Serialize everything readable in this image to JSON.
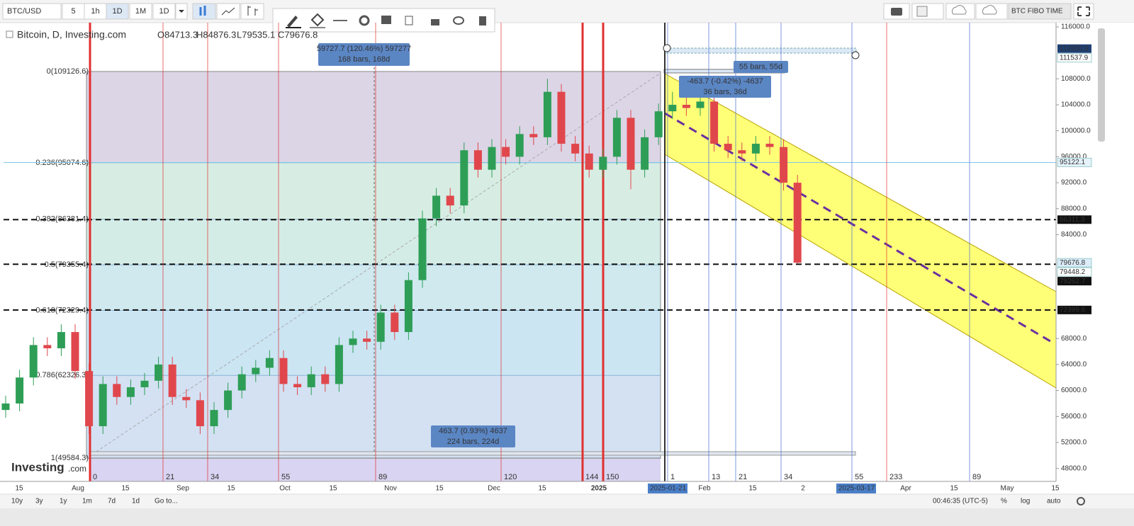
{
  "toolbar": {
    "symbol": "BTC/USD",
    "intervals": [
      "5",
      "1h",
      "1D",
      "1M",
      "1D"
    ],
    "template": "BTC FIBO TIME"
  },
  "legend": {
    "title": "Bitcoin, D, Investing.com",
    "open": "O84713.3",
    "high": "H84876.3",
    "low": "L79535.1",
    "close": "C79676.8"
  },
  "logo": {
    "brand": "Investing",
    "suffix": ".com"
  },
  "chart_data": {
    "type": "candlestick",
    "ylim": [
      46000,
      116650
    ],
    "yticks": [
      {
        "value": 116000,
        "label": "116000.0"
      },
      {
        "value": 108000,
        "label": "108000.0"
      },
      {
        "value": 104000,
        "label": "104000.0"
      },
      {
        "value": 100000,
        "label": "100000.0"
      },
      {
        "value": 96000,
        "label": "96000.0"
      },
      {
        "value": 92000,
        "label": "92000.0"
      },
      {
        "value": 88000,
        "label": "88000.0"
      },
      {
        "value": 84000,
        "label": "84000.0"
      },
      {
        "value": 68000,
        "label": "68000.0"
      },
      {
        "value": 64000,
        "label": "64000.0"
      },
      {
        "value": 60000,
        "label": "60000.0"
      },
      {
        "value": 56000,
        "label": "56000.0"
      },
      {
        "value": 52000,
        "label": "52000.0"
      },
      {
        "value": 48000,
        "label": "48000.0"
      }
    ],
    "up_color": "#2e9e56",
    "down_color": "#e0474c",
    "candles": {
      "open": [
        57000,
        58000,
        62000,
        67000,
        66500,
        69000,
        63000,
        54500,
        61000,
        59000,
        60500,
        61500,
        64000,
        59000,
        58500,
        54500,
        57000,
        60000,
        62500,
        63500,
        65000,
        61000,
        60500,
        62500,
        61000,
        67000,
        68000,
        67500,
        72000,
        69000,
        77000,
        86500,
        90000,
        88500,
        97000,
        94000,
        97500,
        96000,
        99500,
        99000,
        106000,
        98000,
        96500,
        94000,
        96000,
        102000,
        94000,
        99000,
        103000,
        104000,
        103500,
        104500,
        98000,
        97000,
        96500,
        98000,
        97500,
        92000
      ],
      "high": [
        59200,
        63200,
        68200,
        68200,
        70200,
        70200,
        64200,
        62200,
        62200,
        61700,
        62700,
        65200,
        65200,
        60200,
        59700,
        58200,
        61200,
        63700,
        64700,
        66200,
        66200,
        62200,
        63700,
        63700,
        68200,
        69200,
        69200,
        73200,
        73200,
        78200,
        87700,
        91200,
        91200,
        98200,
        98200,
        98700,
        98700,
        100700,
        100700,
        108000,
        107200,
        99200,
        97700,
        97200,
        103200,
        103200,
        100200,
        104200,
        106000,
        105200,
        105700,
        105700,
        99200,
        98200,
        99200,
        99200,
        98700,
        93200
      ],
      "low": [
        55800,
        56800,
        60800,
        65300,
        65300,
        61800,
        53300,
        53300,
        57800,
        57800,
        59300,
        60300,
        57800,
        57300,
        53300,
        53300,
        55800,
        58800,
        61300,
        62300,
        59800,
        59300,
        59300,
        59800,
        59800,
        65800,
        66300,
        66300,
        67800,
        67800,
        75800,
        85300,
        87300,
        87300,
        92800,
        92800,
        94800,
        94800,
        97800,
        97800,
        96800,
        95300,
        92800,
        92800,
        94800,
        91000,
        92800,
        97800,
        101800,
        102300,
        102300,
        96800,
        95800,
        95300,
        95300,
        96300,
        90800,
        79535.1
      ],
      "close": [
        58000,
        62000,
        67000,
        66500,
        69000,
        63000,
        54500,
        61000,
        59000,
        60500,
        61500,
        64000,
        59000,
        58500,
        54500,
        57000,
        60000,
        62500,
        63500,
        65000,
        61000,
        60500,
        62500,
        61000,
        67000,
        68000,
        67500,
        72000,
        69000,
        77000,
        86500,
        90000,
        88500,
        97000,
        94000,
        97500,
        96000,
        99500,
        99000,
        106000,
        98000,
        96500,
        94000,
        96000,
        102000,
        94000,
        99000,
        103000,
        104000,
        103500,
        104500,
        98000,
        97000,
        96500,
        98000,
        97500,
        92000,
        79676.8
      ]
    },
    "fib_levels": [
      {
        "value": 109126.6,
        "label": "0(109126.6)"
      },
      {
        "value": 95074.6,
        "label": "0.236(95074.6)"
      },
      {
        "value": 86381.4,
        "label": "0.382(86381.4)"
      },
      {
        "value": 79355.4,
        "label": "0.5(79355.4)"
      },
      {
        "value": 72329.4,
        "label": "0.618(72329.4)"
      },
      {
        "value": 62326.3,
        "label": "0.786(62326.3)"
      },
      {
        "value": 49584.3,
        "label": "1(49584.3)"
      }
    ],
    "fib_colors": [
      "#dcd5e6",
      "#d7ede3",
      "#d4ece6",
      "#cfe9ef",
      "#cbe5f3",
      "#d3e1f3"
    ],
    "horizontal_lines": [
      86311.3,
      79448.2,
      72399.6
    ],
    "price_tags": [
      112650.9,
      111537.9,
      95122.1,
      86311.3,
      79676.8,
      79448.2,
      79262.7,
      72399.6
    ],
    "price_tag_colors": [
      "#1f3f73",
      "#ffffff",
      "#e6f3fb",
      "#111111",
      "#dcecf8",
      "#ffffff",
      "#111111",
      "#111111"
    ],
    "time_labels": [
      0,
      21,
      34,
      55,
      89,
      120,
      144,
      150,
      1,
      13,
      21,
      34,
      55,
      233,
      89
    ],
    "x_labels": [
      "15",
      "Aug",
      "15",
      "Sep",
      "15",
      "Oct",
      "15",
      "Nov",
      "15",
      "Dec",
      "15",
      "2025",
      "Feb",
      "15",
      "2",
      "Apr",
      "15",
      "May",
      "15"
    ],
    "date_highlights": [
      "2025-01-21",
      "2025-03-17"
    ],
    "measurements": [
      {
        "line1": "59727.7 (120.46%) 597277",
        "line2": "168 bars, 168d"
      },
      {
        "line1": "55 bars, 55d"
      },
      {
        "line1": "-463.7 (-0.42%) -4637",
        "line2": "36 bars, 36d"
      },
      {
        "line1": "463.7 (0.93%) 4637",
        "line2": "224 bars, 224d"
      }
    ]
  },
  "footer": {
    "ranges": [
      "10y",
      "3y",
      "1y",
      "1m",
      "7d",
      "1d",
      "Go to..."
    ],
    "clock": "00:46:35 (UTC-5)",
    "options": [
      "%",
      "log",
      "auto"
    ]
  }
}
